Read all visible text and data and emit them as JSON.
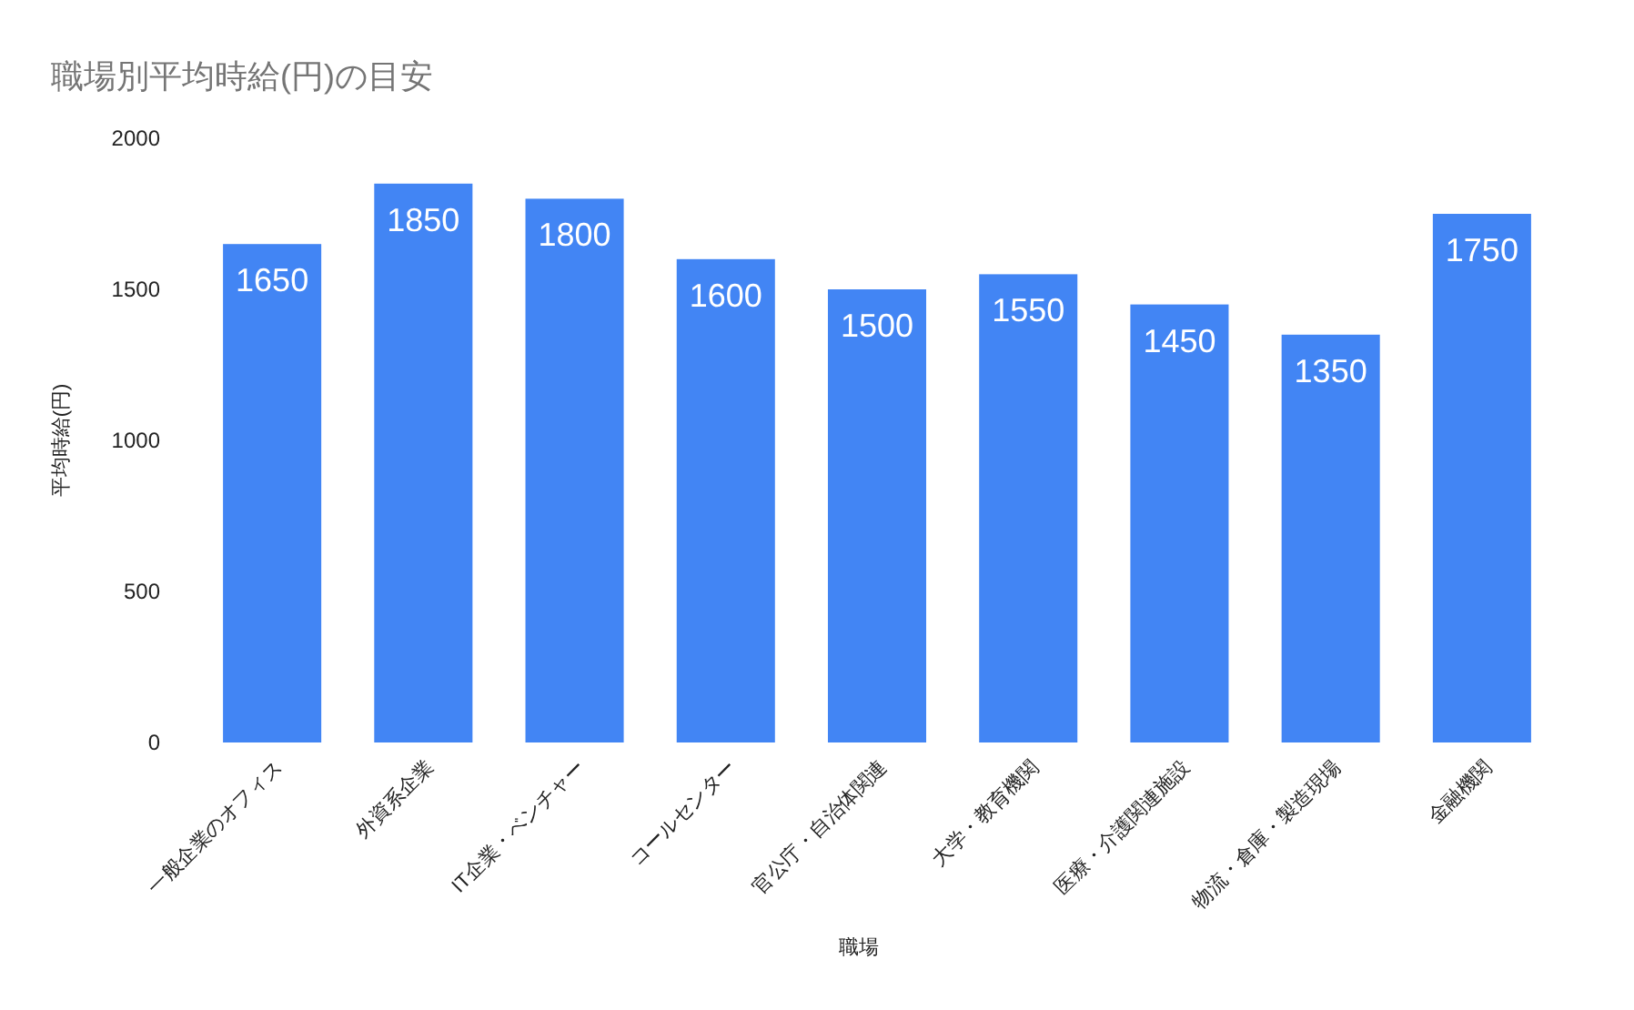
{
  "chart_data": {
    "type": "bar",
    "title": "職場別平均時給(円)の目安",
    "xlabel": "職場",
    "ylabel": "平均時給(円)",
    "categories": [
      "一般企業のオフィス",
      "外資系企業",
      "IT企業・ベンチャー",
      "コールセンター",
      "官公庁・自治体関連",
      "大学・教育機関",
      "医療・介護関連施設",
      "物流・倉庫・製造現場",
      "金融機関"
    ],
    "series": [
      {
        "color": "#4285f4",
        "values": [
          1650,
          1850,
          1800,
          1600,
          1500,
          1550,
          1450,
          1350,
          1750
        ]
      }
    ],
    "ylim": [
      0,
      2000
    ],
    "yticks": [
      0,
      500,
      1000,
      1500,
      2000
    ],
    "data_labels": true,
    "grid": false
  }
}
